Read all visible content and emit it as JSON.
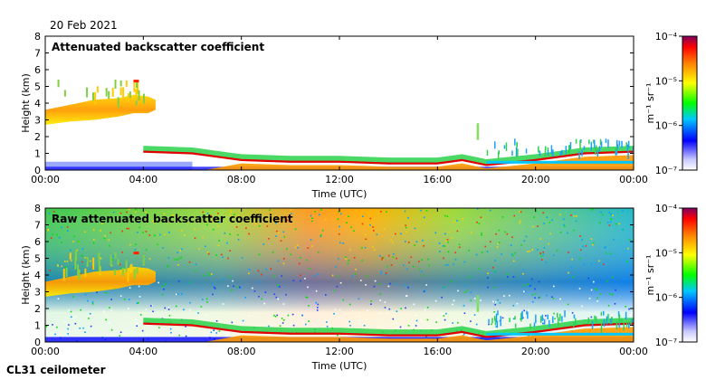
{
  "date": "20 Feb 2021",
  "instrument": "CL31 ceilometer",
  "chart_data": [
    {
      "type": "heatmap",
      "title": "Attenuated backscatter coefficient",
      "xlabel": "Time (UTC)",
      "ylabel": "Height (km)",
      "xticks": [
        "00:00",
        "04:00",
        "08:00",
        "12:00",
        "16:00",
        "20:00",
        "00:00"
      ],
      "yticks": [
        "0",
        "1",
        "2",
        "3",
        "4",
        "5",
        "6",
        "7",
        "8"
      ],
      "xlim": [
        0,
        24
      ],
      "ylim": [
        0,
        8
      ],
      "colorbar": {
        "label": "m⁻¹ sr⁻¹",
        "scale": "log",
        "ticks": [
          "10⁻⁴",
          "10⁻⁵",
          "10⁻⁶",
          "10⁻⁷"
        ],
        "range": [
          1e-07,
          0.0001
        ]
      },
      "features": {
        "cloud_base_km": [
          [
            4.0,
            1.1
          ],
          [
            6.0,
            1.0
          ],
          [
            8.0,
            0.6
          ],
          [
            10.0,
            0.5
          ],
          [
            12.0,
            0.5
          ],
          [
            14.0,
            0.4
          ],
          [
            16.0,
            0.4
          ],
          [
            17.0,
            0.6
          ],
          [
            18.0,
            0.3
          ],
          [
            20.0,
            0.6
          ],
          [
            22.0,
            1.0
          ],
          [
            24.0,
            1.1
          ]
        ],
        "aerosol_layer_km": [
          [
            0,
            3.2
          ],
          [
            2.0,
            3.6
          ],
          [
            3.5,
            3.8
          ],
          [
            4.5,
            4.0
          ]
        ]
      }
    },
    {
      "type": "heatmap",
      "title": "Raw attenuated backscatter coefficient",
      "xlabel": "Time (UTC)",
      "ylabel": "Height (km)",
      "xticks": [
        "00:00",
        "04:00",
        "08:00",
        "12:00",
        "16:00",
        "20:00",
        "00:00"
      ],
      "yticks": [
        "0",
        "1",
        "2",
        "3",
        "4",
        "5",
        "6",
        "7",
        "8"
      ],
      "xlim": [
        0,
        24
      ],
      "ylim": [
        0,
        8
      ],
      "colorbar": {
        "label": "m⁻¹ sr⁻¹",
        "scale": "log",
        "ticks": [
          "10⁻⁴",
          "10⁻⁵",
          "10⁻⁶",
          "10⁻⁷"
        ],
        "range": [
          1e-07,
          0.0001
        ]
      }
    }
  ]
}
